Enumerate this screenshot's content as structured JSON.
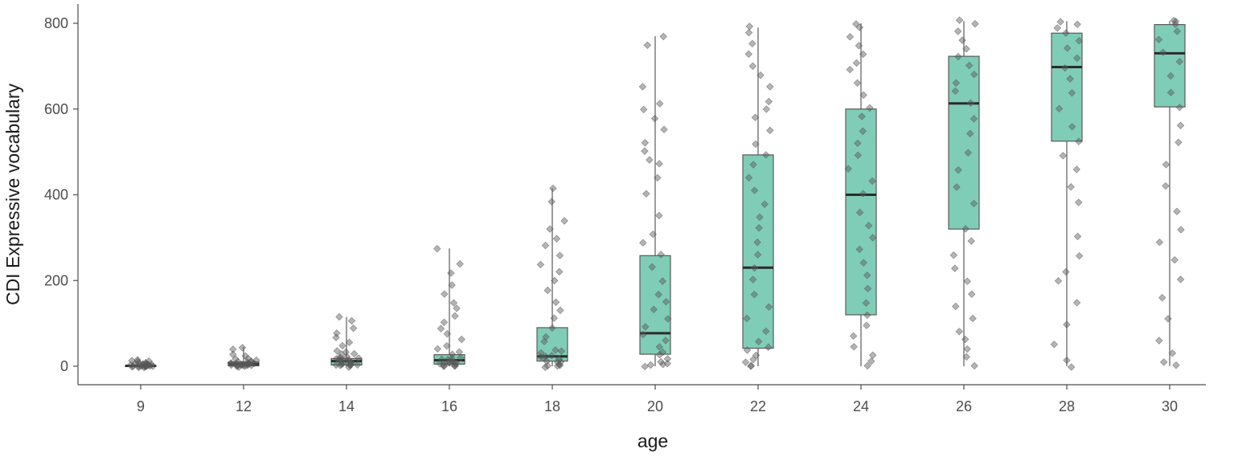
{
  "chart_data": {
    "type": "box",
    "xlabel": "age",
    "ylabel": "CDI Expressive vocabulary",
    "ylim": [
      0,
      840
    ],
    "yticks": [
      0,
      200,
      400,
      600,
      800
    ],
    "grid": false,
    "categories": [
      "9",
      "12",
      "14",
      "16",
      "18",
      "20",
      "22",
      "24",
      "26",
      "28",
      "30"
    ],
    "boxes": [
      {
        "category": "9",
        "whisker_low": 0,
        "q1": 0,
        "median": 1,
        "q3": 2,
        "whisker_high": 2
      },
      {
        "category": "12",
        "whisker_low": 0,
        "q1": 1,
        "median": 5,
        "q3": 10,
        "whisker_high": 45
      },
      {
        "category": "14",
        "whisker_low": 0,
        "q1": 3,
        "median": 12,
        "q3": 18,
        "whisker_high": 115
      },
      {
        "category": "16",
        "whisker_low": 0,
        "q1": 5,
        "median": 14,
        "q3": 27,
        "whisker_high": 275
      },
      {
        "category": "18",
        "whisker_low": 0,
        "q1": 12,
        "median": 23,
        "q3": 90,
        "whisker_high": 415
      },
      {
        "category": "20",
        "whisker_low": 0,
        "q1": 28,
        "median": 77,
        "q3": 258,
        "whisker_high": 770
      },
      {
        "category": "22",
        "whisker_low": 0,
        "q1": 42,
        "median": 230,
        "q3": 493,
        "whisker_high": 790
      },
      {
        "category": "24",
        "whisker_low": 0,
        "q1": 120,
        "median": 400,
        "q3": 600,
        "whisker_high": 800
      },
      {
        "category": "26",
        "whisker_low": 0,
        "q1": 320,
        "median": 613,
        "q3": 723,
        "whisker_high": 805
      },
      {
        "category": "28",
        "whisker_low": 0,
        "q1": 525,
        "median": 698,
        "q3": 777,
        "whisker_high": 805
      },
      {
        "category": "30",
        "whisker_low": 0,
        "q1": 605,
        "median": 730,
        "q3": 797,
        "whisker_high": 805
      }
    ],
    "jitter_points": [
      {
        "category": "9",
        "y": [
          0,
          0,
          0,
          1,
          1,
          1,
          2,
          2,
          2,
          3,
          3,
          4,
          5,
          6,
          8,
          10,
          12,
          15,
          0,
          0,
          1,
          1,
          2,
          0,
          3,
          5,
          7,
          11,
          0,
          1
        ]
      },
      {
        "category": "12",
        "y": [
          0,
          0,
          1,
          1,
          2,
          2,
          3,
          3,
          4,
          5,
          5,
          6,
          7,
          8,
          9,
          10,
          12,
          14,
          17,
          20,
          25,
          30,
          38,
          45,
          0,
          2,
          4,
          6,
          8,
          15
        ]
      },
      {
        "category": "14",
        "y": [
          0,
          1,
          2,
          3,
          4,
          5,
          6,
          8,
          10,
          12,
          14,
          16,
          18,
          20,
          24,
          28,
          33,
          38,
          45,
          55,
          65,
          75,
          90,
          105,
          115,
          2,
          5,
          9,
          13,
          17,
          22,
          30
        ]
      },
      {
        "category": "16",
        "y": [
          0,
          1,
          2,
          3,
          5,
          6,
          8,
          10,
          12,
          15,
          18,
          22,
          27,
          32,
          40,
          50,
          60,
          75,
          90,
          105,
          120,
          135,
          150,
          170,
          190,
          215,
          240,
          275,
          3,
          7,
          11,
          14
        ]
      },
      {
        "category": "18",
        "y": [
          0,
          1,
          3,
          5,
          8,
          12,
          15,
          18,
          22,
          25,
          30,
          40,
          55,
          70,
          90,
          110,
          130,
          150,
          175,
          200,
          220,
          240,
          260,
          280,
          300,
          320,
          340,
          385,
          415,
          2,
          10,
          20,
          35
        ]
      },
      {
        "category": "20",
        "y": [
          0,
          2,
          5,
          8,
          12,
          18,
          25,
          32,
          45,
          60,
          75,
          90,
          110,
          130,
          150,
          170,
          200,
          230,
          258,
          290,
          310,
          350,
          400,
          440,
          470,
          480,
          500,
          520,
          550,
          580,
          600,
          612,
          650,
          750,
          770
        ]
      },
      {
        "category": "22",
        "y": [
          0,
          3,
          8,
          15,
          25,
          35,
          42,
          60,
          80,
          110,
          140,
          170,
          200,
          230,
          260,
          290,
          320,
          350,
          380,
          410,
          440,
          470,
          493,
          520,
          550,
          580,
          600,
          620,
          650,
          680,
          700,
          730,
          750,
          780,
          790
        ]
      },
      {
        "category": "24",
        "y": [
          0,
          10,
          25,
          45,
          70,
          95,
          120,
          150,
          180,
          210,
          240,
          270,
          300,
          330,
          360,
          400,
          430,
          460,
          490,
          520,
          550,
          580,
          600,
          630,
          660,
          690,
          710,
          730,
          750,
          770,
          790,
          800
        ]
      },
      {
        "category": "26",
        "y": [
          0,
          20,
          40,
          60,
          80,
          110,
          140,
          170,
          200,
          230,
          260,
          290,
          320,
          380,
          420,
          460,
          500,
          540,
          580,
          613,
          640,
          660,
          680,
          700,
          723,
          740,
          760,
          780,
          800,
          805
        ]
      },
      {
        "category": "28",
        "y": [
          0,
          15,
          50,
          100,
          150,
          200,
          220,
          260,
          300,
          380,
          420,
          460,
          490,
          525,
          560,
          600,
          640,
          670,
          698,
          720,
          740,
          760,
          777,
          790,
          800,
          805
        ]
      },
      {
        "category": "30",
        "y": [
          0,
          10,
          30,
          60,
          110,
          160,
          200,
          250,
          290,
          320,
          360,
          420,
          470,
          520,
          560,
          605,
          640,
          680,
          710,
          730,
          760,
          780,
          797,
          805,
          805
        ]
      }
    ],
    "colors": {
      "box_fill": "#7fcdb6",
      "box_border": "#5a5a5a",
      "median": "#2b2b2b",
      "whisker": "#5a5a5a",
      "point": "#595959",
      "axis": "#4d4d4d"
    }
  }
}
